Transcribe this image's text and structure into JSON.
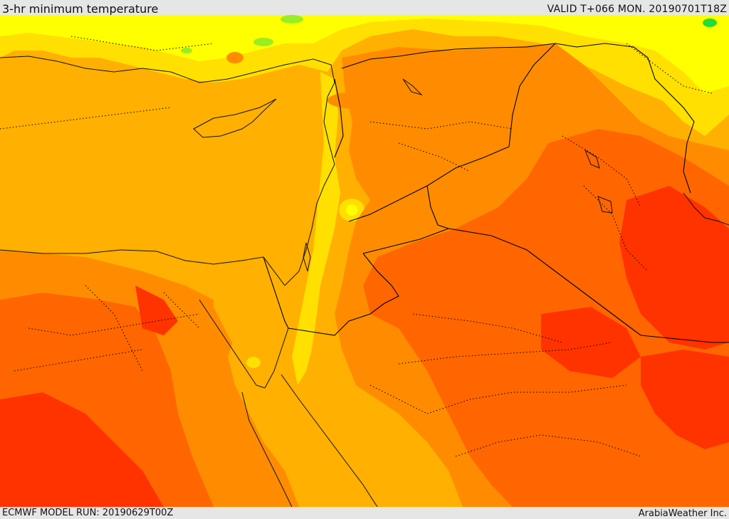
{
  "header": {
    "title": "3-hr minimum temperature",
    "valid": "VALID T+066 MON. 20190701T18Z"
  },
  "footer": {
    "model_run": "ECMWF MODEL RUN: 20190629T00Z",
    "credit": "ArabiaWeather Inc."
  },
  "map": {
    "field": "3-hr minimum temperature",
    "palette": {
      "lowest": "#22dd33",
      "very_low": "#99ee22",
      "low": "#ffff00",
      "mid_low": "#ffe000",
      "mid": "#ffb000",
      "mid_high": "#ff8c00",
      "high": "#ff6600",
      "highest": "#ff3300"
    },
    "border_color": "#000000",
    "border_style": "solid for national borders, dotted for provinces"
  }
}
